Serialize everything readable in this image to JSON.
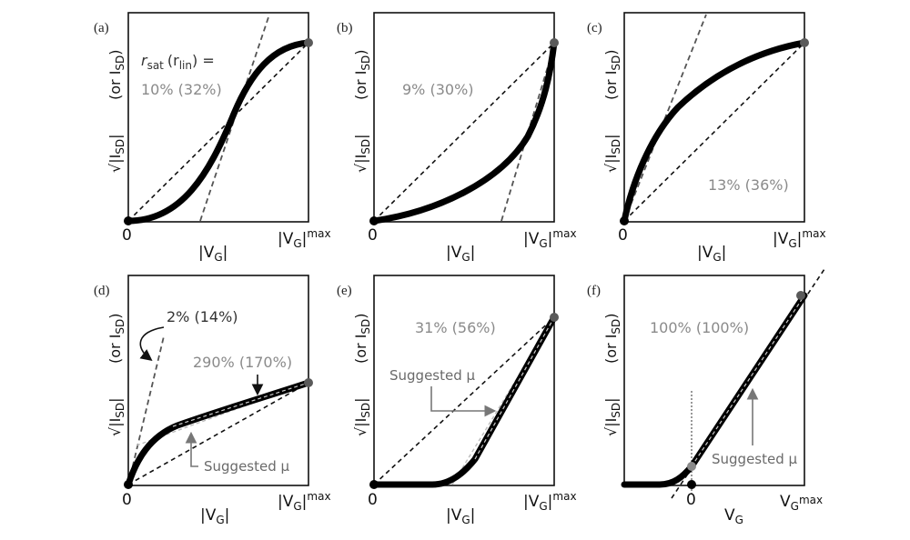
{
  "figure": {
    "panels": [
      {
        "id": "a",
        "letter": "(a)",
        "ylabel_main": "√|I",
        "ylabel_sub": "SD",
        "ylabel_alt": "(or I",
        "ylabel_alt_sub": "SD",
        "ylabel_alt_close": ")",
        "xlabel": "|V",
        "xlabel_sub": "G",
        "xlabel_close": "|",
        "xmax_label": "|V",
        "xmax_sub": "G",
        "xmax_close": "|",
        "xmax_sup": "max",
        "origin": "0",
        "header_r": "r",
        "header_r_sub": "sat",
        "header_rlin_open": "(r",
        "header_rlin_sub": "lin",
        "header_rlin_close": ") =",
        "ratio": "10%  (32%)"
      },
      {
        "id": "b",
        "letter": "(b)",
        "ylabel_main": "√|I",
        "ylabel_sub": "SD",
        "ylabel_alt": "(or I",
        "ylabel_alt_sub": "SD",
        "ylabel_alt_close": ")",
        "xlabel": "|V",
        "xlabel_sub": "G",
        "xlabel_close": "|",
        "xmax_label": "|V",
        "xmax_sub": "G",
        "xmax_close": "|",
        "xmax_sup": "max",
        "origin": "0",
        "ratio": "9%  (30%)"
      },
      {
        "id": "c",
        "letter": "(c)",
        "ylabel_main": "√|I",
        "ylabel_sub": "SD",
        "ylabel_alt": "(or I",
        "ylabel_alt_sub": "SD",
        "ylabel_alt_close": ")",
        "xlabel": "|V",
        "xlabel_sub": "G",
        "xlabel_close": "|",
        "xmax_label": "|V",
        "xmax_sub": "G",
        "xmax_close": "|",
        "xmax_sup": "max",
        "origin": "0",
        "ratio": "13%  (36%)"
      },
      {
        "id": "d",
        "letter": "(d)",
        "ylabel_main": "√|I",
        "ylabel_sub": "SD",
        "ylabel_alt": "(or I",
        "ylabel_alt_sub": "SD",
        "ylabel_alt_close": ")",
        "xlabel": "|V",
        "xlabel_sub": "G",
        "xlabel_close": "|",
        "xmax_label": "|V",
        "xmax_sub": "G",
        "xmax_close": "|",
        "xmax_sup": "max",
        "origin": "0",
        "ratio": "2%  (14%)",
        "ratio2": "290%  (170%)",
        "suggested": "Suggested μ"
      },
      {
        "id": "e",
        "letter": "(e)",
        "ylabel_main": "√|I",
        "ylabel_sub": "SD",
        "ylabel_alt": "(or I",
        "ylabel_alt_sub": "SD",
        "ylabel_alt_close": ")",
        "xlabel": "|V",
        "xlabel_sub": "G",
        "xlabel_close": "|",
        "xmax_label": "|V",
        "xmax_sub": "G",
        "xmax_close": "|",
        "xmax_sup": "max",
        "origin": "0",
        "ratio": "31%  (56%)",
        "suggested": "Suggested μ"
      },
      {
        "id": "f",
        "letter": "(f)",
        "ylabel_main": "√|I",
        "ylabel_sub": "SD",
        "ylabel_alt": "(or I",
        "ylabel_alt_sub": "SD",
        "ylabel_alt_close": ")",
        "xlabel": "V",
        "xlabel_sub": "G",
        "xlabel_close": "",
        "xmax_label": "V",
        "xmax_sub": "G",
        "xmax_close": "",
        "xmax_sup": "max",
        "origin": "0",
        "ratio": "100%  (100%)",
        "suggested": "Suggested μ"
      }
    ]
  },
  "colors": {
    "curve": "#000000",
    "dash_dark": "#111111",
    "dash_gray": "#555555",
    "endpoint_gray": "#5a5a5a",
    "text_gray": "#8a8a8a"
  }
}
